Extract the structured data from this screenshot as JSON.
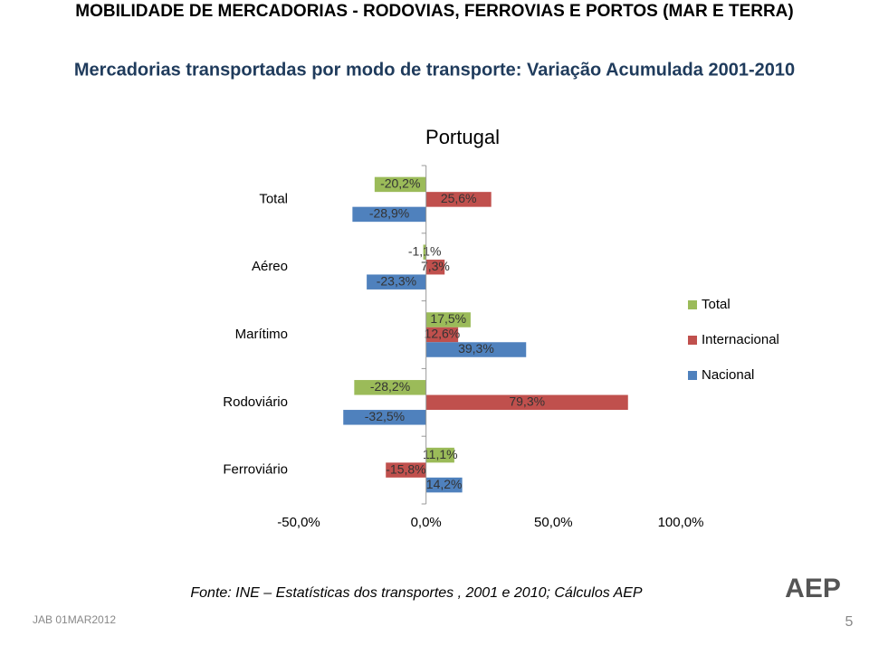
{
  "header": {
    "title": "MOBILIDADE  DE MERCADORIAS - RODOVIAS, FERROVIAS E PORTOS (MAR E TERRA)",
    "subtitle": "Mercadorias transportadas por modo de transporte: Variação Acumulada 2001-2010"
  },
  "chart_data": {
    "type": "hbar",
    "title": "Portugal",
    "categories": [
      "Total",
      "Aéreo",
      "Marítimo",
      "Rodoviário",
      "Ferroviário"
    ],
    "series": [
      {
        "name": "Total",
        "color": "#9bbb59",
        "values": [
          -20.2,
          -1.1,
          17.5,
          -28.2,
          11.1
        ],
        "value_labels": [
          "-20,2%",
          "-1,1%",
          "17,5%",
          "-28,2%",
          "11,1%"
        ]
      },
      {
        "name": "Internacional",
        "color": "#c0504d",
        "values": [
          25.6,
          7.3,
          12.6,
          79.3,
          -15.8
        ],
        "value_labels": [
          "25,6%",
          "7,3%",
          "12,6%",
          "79,3%",
          "-15,8%"
        ]
      },
      {
        "name": "Nacional",
        "color": "#4f81bd",
        "values": [
          -28.9,
          -23.3,
          39.3,
          -32.5,
          14.2
        ],
        "value_labels": [
          "-28,9%",
          "-23,3%",
          "39,3%",
          "-32,5%",
          "14,2%"
        ]
      }
    ],
    "xlim": [
      -50,
      100
    ],
    "xticks": [
      {
        "value": -50,
        "label": "-50,0%"
      },
      {
        "value": 0,
        "label": "0,0%"
      },
      {
        "value": 50,
        "label": "50,0%"
      },
      {
        "value": 100,
        "label": "100,0%"
      }
    ],
    "grid": false,
    "legend": "right"
  },
  "source": "Fonte:  INE – Estatísticas dos transportes , 2001 e 2010; Cálculos AEP",
  "footer": {
    "author": "JAB  01MAR2012",
    "page": "5",
    "logo": "AEP"
  }
}
